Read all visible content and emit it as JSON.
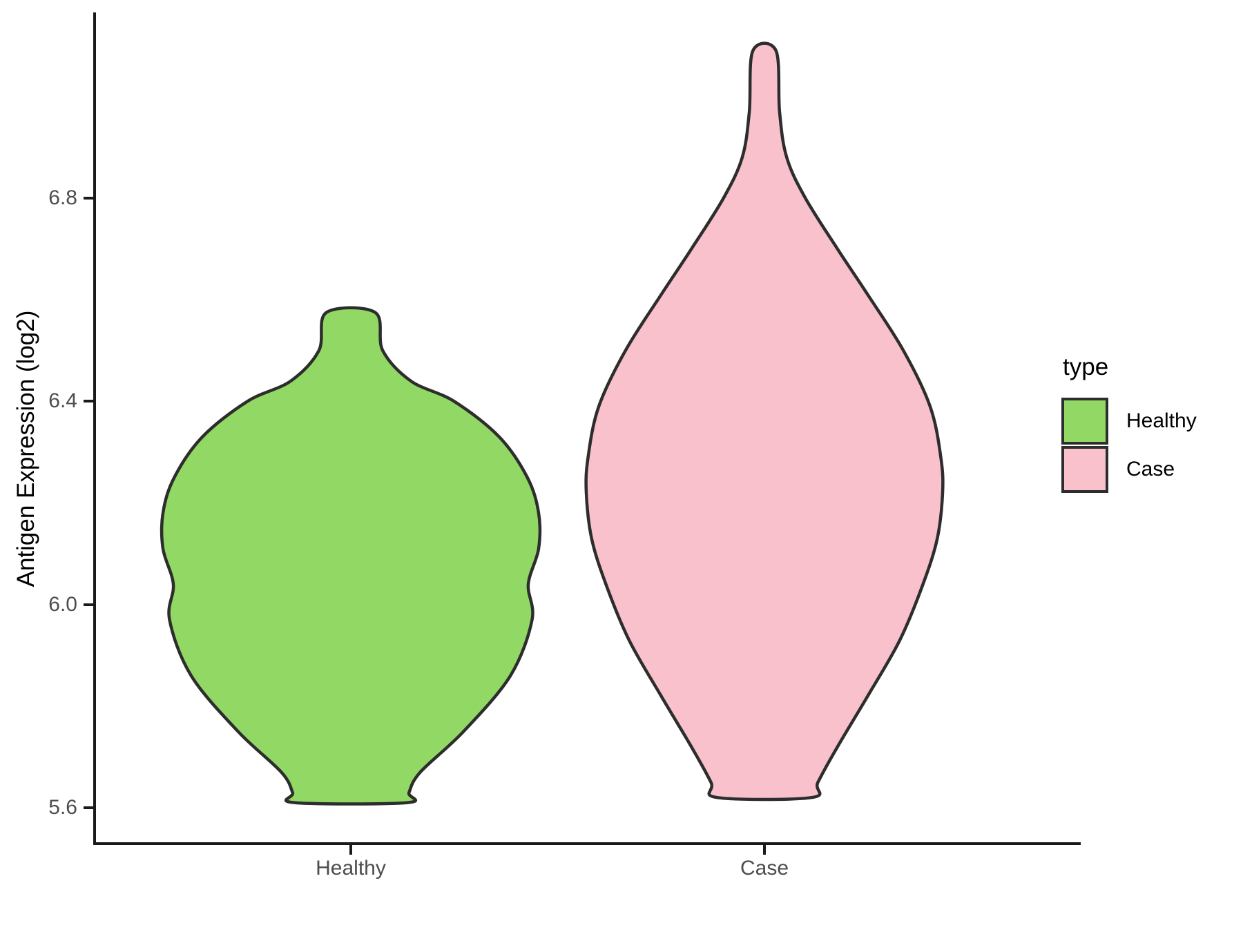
{
  "figure": {
    "y_axis_title": "Antigen Expression (log2)",
    "y_tick_labels": [
      "6.8",
      "6.4",
      "6.0",
      "5.6"
    ],
    "x_tick_labels": [
      "Healthy",
      "Case"
    ]
  },
  "legend": {
    "title": "type",
    "position": "right",
    "entries": [
      {
        "label": "Healthy",
        "color": "#91d964"
      },
      {
        "label": "Case",
        "color": "#f8c1cc"
      }
    ]
  },
  "chart_data": {
    "type": "violin",
    "title": "",
    "xlabel": "",
    "ylabel": "Antigen Expression (log2)",
    "categories": [
      "Healthy",
      "Case"
    ],
    "y_ticks": [
      5.6,
      6.0,
      6.4,
      6.8
    ],
    "ylim_shown": [
      5.45,
      7.17
    ],
    "grid": "off",
    "theme": "classic (axis lines only, white background)",
    "legend_title": "type",
    "legend_entries": [
      "Healthy",
      "Case"
    ],
    "series": [
      {
        "name": "Healthy",
        "fill": "#91d964",
        "outline": "#2d2d2d",
        "min_value": 5.61,
        "max_value": 6.57,
        "widest_at": 6.15,
        "profile": [
          [
            6.575,
            0.13
          ],
          [
            6.5,
            0.17
          ],
          [
            6.44,
            0.32
          ],
          [
            6.4,
            0.55
          ],
          [
            6.33,
            0.79
          ],
          [
            6.25,
            0.94
          ],
          [
            6.18,
            1.0
          ],
          [
            6.11,
            1.0
          ],
          [
            6.04,
            0.945
          ],
          [
            5.97,
            0.965
          ],
          [
            5.86,
            0.85
          ],
          [
            5.75,
            0.6
          ],
          [
            5.67,
            0.37
          ],
          [
            5.63,
            0.31
          ],
          [
            5.61,
            0.3
          ]
        ]
      },
      {
        "name": "Case",
        "fill": "#f8c1cc",
        "outline": "#2d2d2d",
        "min_value": 5.62,
        "max_value": 7.09,
        "widest_at": 6.22,
        "profile": [
          [
            7.09,
            0.065
          ],
          [
            6.97,
            0.085
          ],
          [
            6.88,
            0.125
          ],
          [
            6.8,
            0.23
          ],
          [
            6.7,
            0.41
          ],
          [
            6.61,
            0.58
          ],
          [
            6.5,
            0.78
          ],
          [
            6.39,
            0.93
          ],
          [
            6.29,
            0.99
          ],
          [
            6.22,
            1.0
          ],
          [
            6.13,
            0.97
          ],
          [
            6.04,
            0.89
          ],
          [
            5.93,
            0.76
          ],
          [
            5.82,
            0.58
          ],
          [
            5.72,
            0.41
          ],
          [
            5.65,
            0.3
          ],
          [
            5.62,
            0.265
          ]
        ]
      }
    ]
  }
}
